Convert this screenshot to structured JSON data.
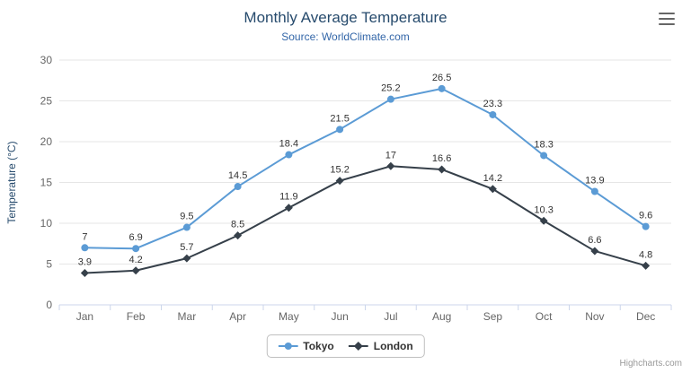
{
  "credits": "Highcharts.com",
  "export_menu_icon": "hamburger-menu-icon",
  "chart_data": {
    "type": "line",
    "title": "Monthly Average Temperature",
    "subtitle": "Source: WorldClimate.com",
    "categories": [
      "Jan",
      "Feb",
      "Mar",
      "Apr",
      "May",
      "Jun",
      "Jul",
      "Aug",
      "Sep",
      "Oct",
      "Nov",
      "Dec"
    ],
    "series": [
      {
        "name": "Tokyo",
        "color": "#5b9bd5",
        "marker": "circle",
        "values": [
          7,
          6.9,
          9.5,
          14.5,
          18.4,
          21.5,
          25.2,
          26.5,
          23.3,
          18.3,
          13.9,
          9.6
        ]
      },
      {
        "name": "London",
        "color": "#36404a",
        "marker": "diamond",
        "values": [
          3.9,
          4.2,
          5.7,
          8.5,
          11.9,
          15.2,
          17,
          16.6,
          14.2,
          10.3,
          6.6,
          4.8
        ]
      }
    ],
    "xlabel": "",
    "ylabel": "Temperature (°C)",
    "ylim": [
      0,
      30
    ],
    "yticks": [
      0,
      5,
      10,
      15,
      20,
      25,
      30
    ],
    "grid": true,
    "data_labels": true,
    "legend_position": "bottom"
  },
  "theme": {
    "title_color": "#274b6d",
    "subtitle_color": "#3366a8",
    "grid_color": "#e6e6e6",
    "axis_line_color": "#ccd6eb",
    "axis_label_color": "#666666",
    "data_label_color": "#333333",
    "legend_text_color": "#333333",
    "credits_color": "#999999"
  }
}
